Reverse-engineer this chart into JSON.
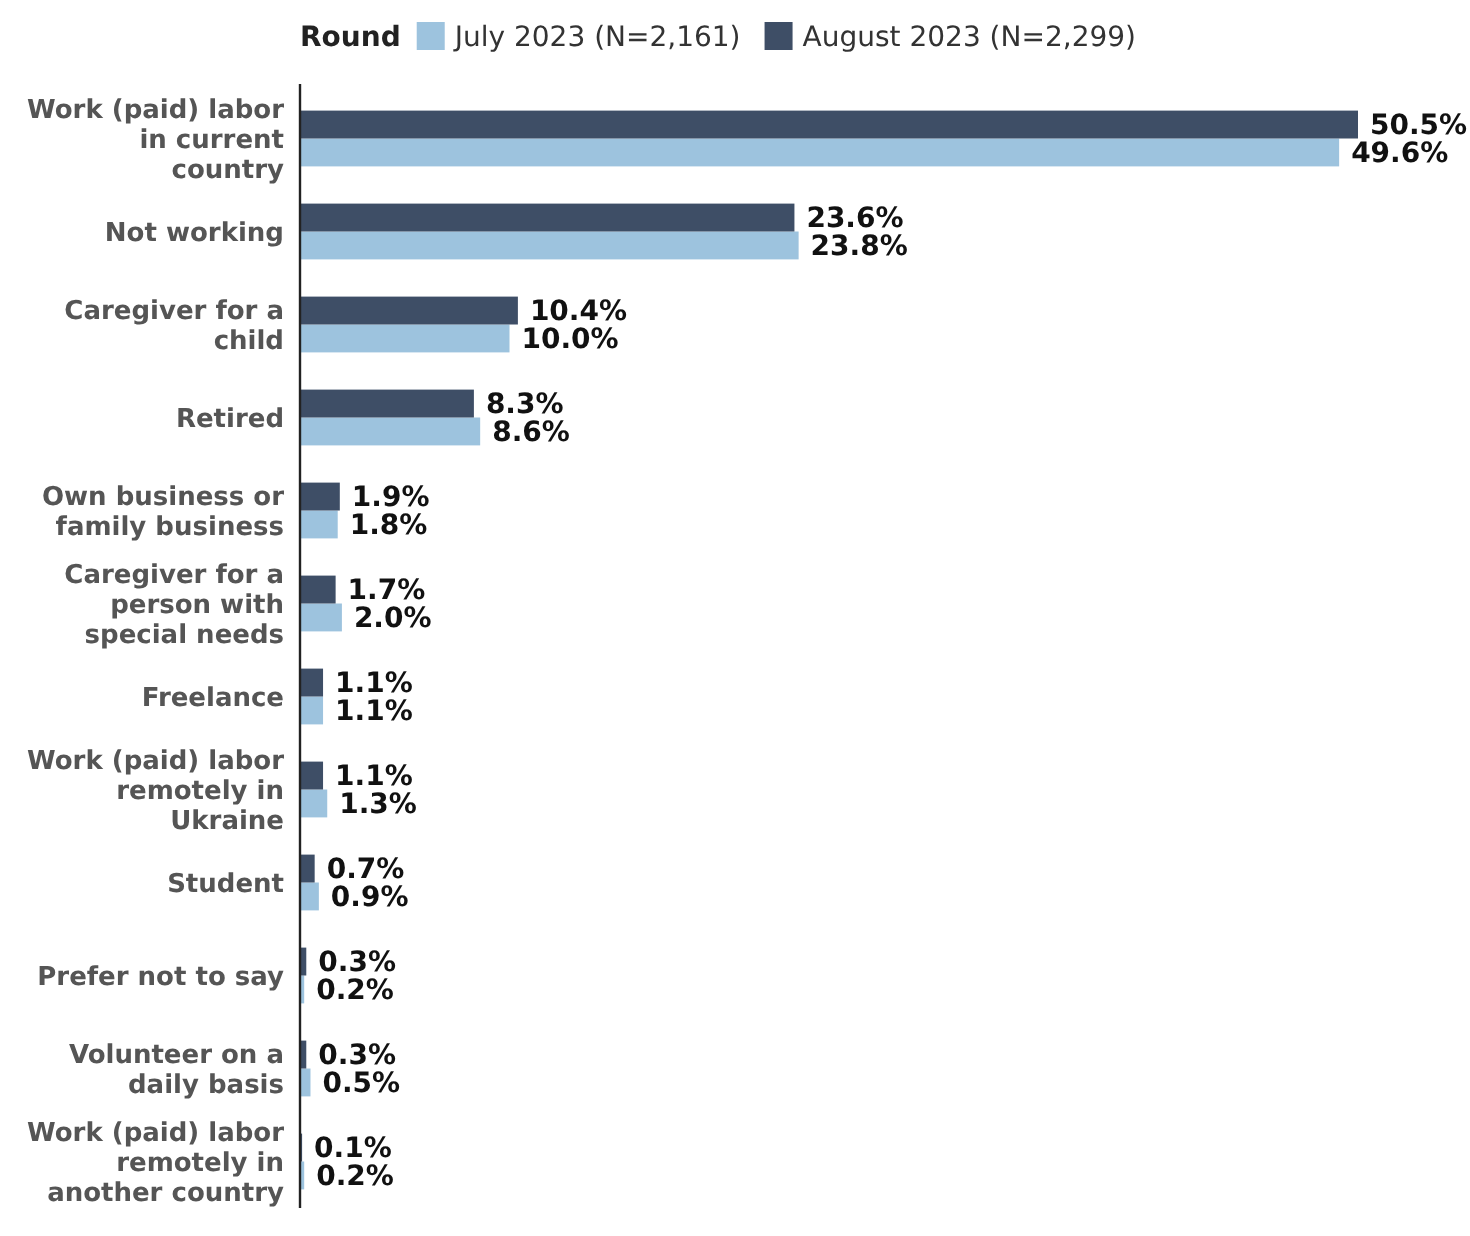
{
  "chart_data": {
    "type": "bar",
    "orientation": "horizontal",
    "legend_title": "Round",
    "legend": "top",
    "tick_labels": "y",
    "categories": [
      "Work (paid) labor in current country",
      "Not working",
      "Caregiver for a child",
      "Retired",
      "Own business or family business",
      "Caregiver for a person with special needs",
      "Freelance",
      "Work (paid) labor remotely in Ukraine",
      "Student",
      "Prefer not to say",
      "Volunteer on a daily basis",
      "Work (paid) labor remotely in another country"
    ],
    "series": [
      {
        "name": "July 2023 (N=2,161)",
        "color": "#9dc3de",
        "values": [
          49.6,
          23.8,
          10.0,
          8.6,
          1.8,
          2.0,
          1.1,
          1.3,
          0.9,
          0.2,
          0.5,
          0.2
        ],
        "value_labels": [
          "49.6%",
          "23.8%",
          "10.0%",
          "8.6%",
          "1.8%",
          "2.0%",
          "1.1%",
          "1.3%",
          "0.9%",
          "0.2%",
          "0.5%",
          "0.2%"
        ]
      },
      {
        "name": "August 2023 (N=2,299)",
        "color": "#3e4e66",
        "values": [
          50.5,
          23.6,
          10.4,
          8.3,
          1.9,
          1.7,
          1.1,
          1.1,
          0.7,
          0.3,
          0.3,
          0.1
        ],
        "value_labels": [
          "50.5%",
          "23.6%",
          "10.4%",
          "8.3%",
          "1.9%",
          "1.7%",
          "1.1%",
          "1.1%",
          "0.7%",
          "0.3%",
          "0.3%",
          "0.1%"
        ]
      }
    ]
  }
}
